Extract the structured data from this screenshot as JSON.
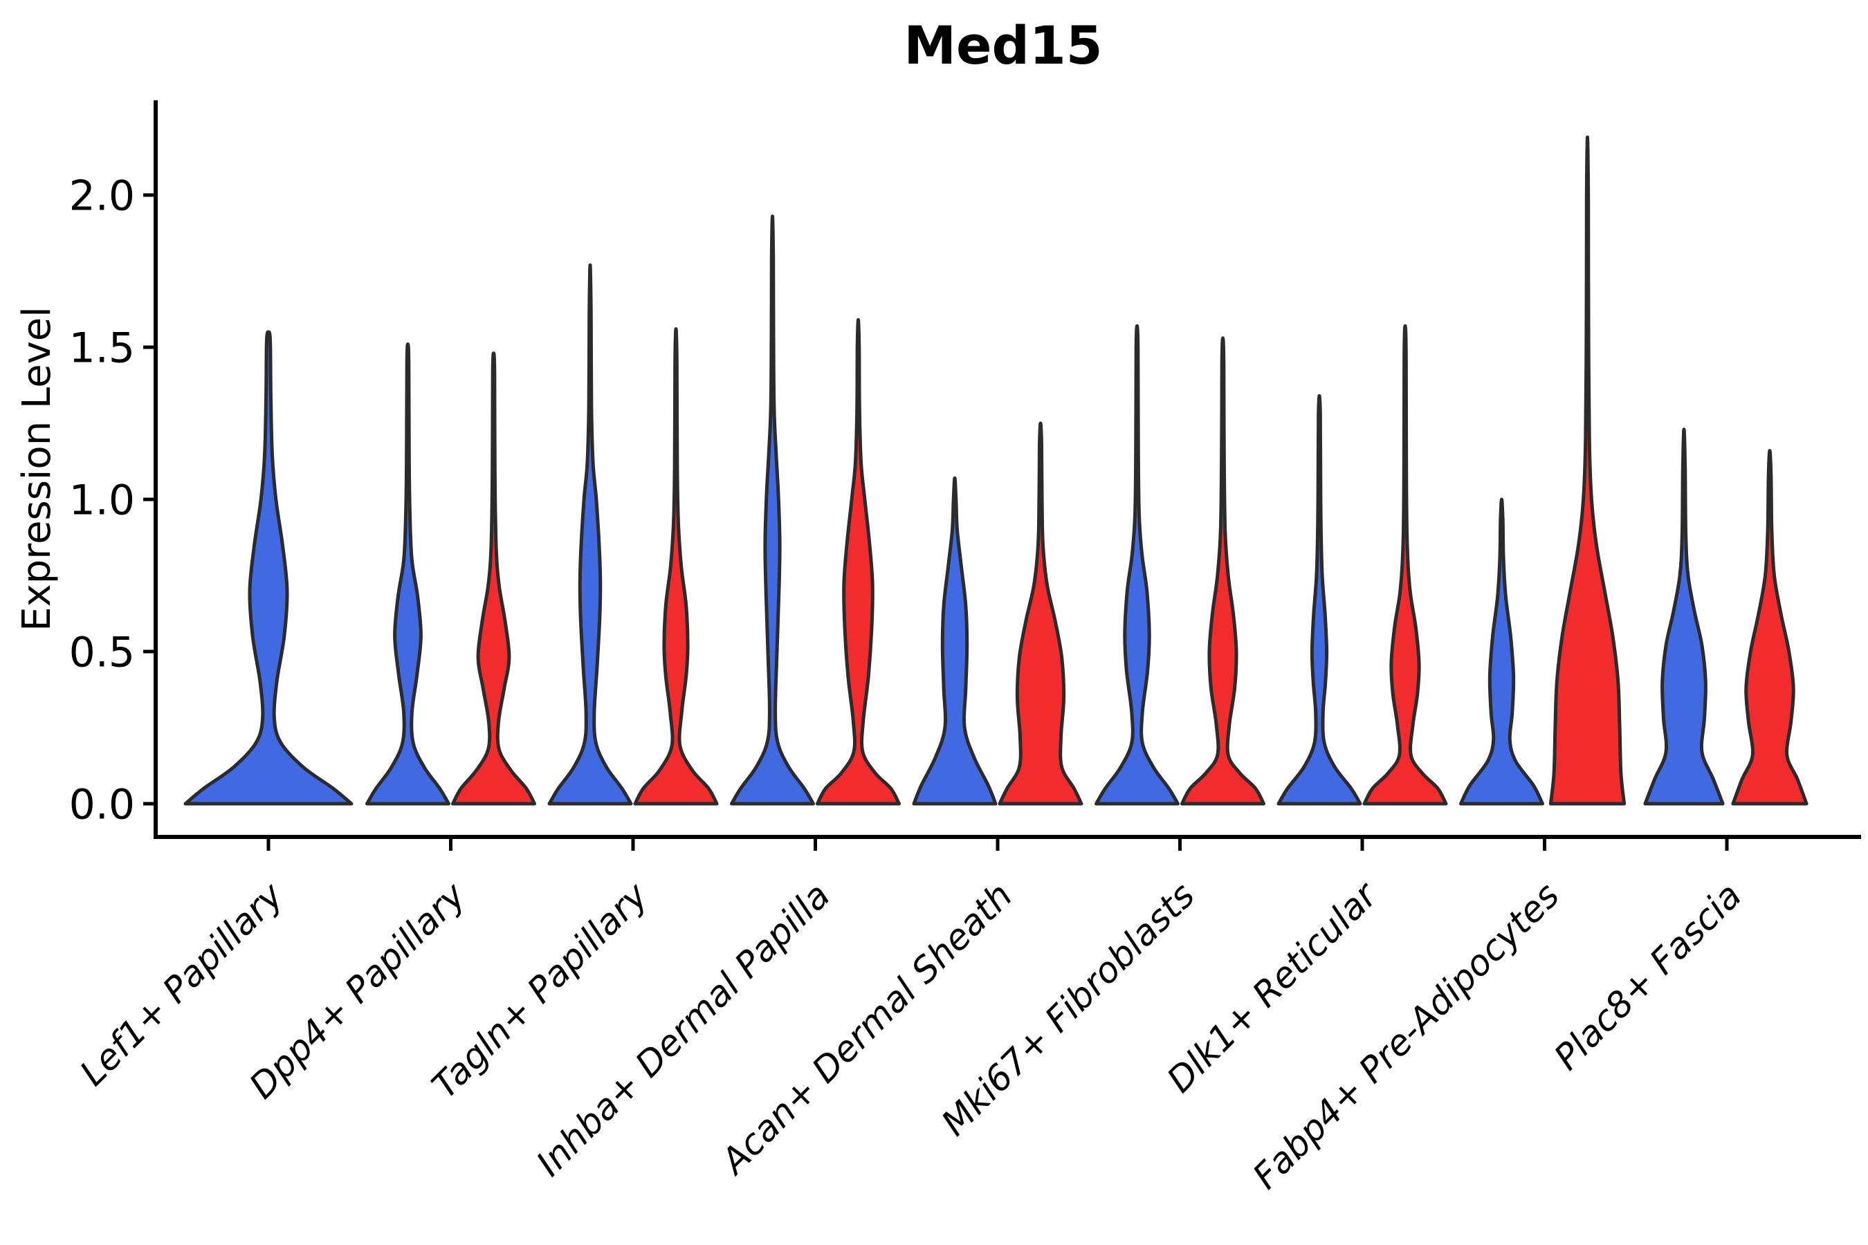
{
  "page": {
    "background": "#ffffff"
  },
  "chart_data": {
    "type": "violin",
    "title": "Med15",
    "ylabel": "Expression Level",
    "xlabel": "",
    "grid": false,
    "legend": null,
    "x_tick_rotation": 45,
    "ylim": [
      0,
      2.3
    ],
    "ytick_labels": [
      "0.0",
      "0.5",
      "1.0",
      "1.5",
      "2.0"
    ],
    "ytick_values": [
      0.0,
      0.5,
      1.0,
      1.5,
      2.0
    ],
    "colors": {
      "blue": "#4169E1",
      "red": "#F22C2C",
      "edge": "#2B2B2B",
      "axis": "#000000"
    },
    "categories": [
      "Lef1+ Papillary",
      "Dpp4+ Papillary",
      "Tagln+ Papillary",
      "Inhba+ Dermal Papilla",
      "Acan+ Dermal Sheath",
      "Mki67+ Fibroblasts",
      "Dlk1+ Reticular",
      "Fabp4+ Pre-Adipocytes",
      "Plac8+ Fascia"
    ],
    "groups": [
      {
        "category": "Lef1+ Papillary",
        "violins": [
          {
            "color": "blue",
            "peak": 1.55,
            "profile": [
              [
                0,
                1.0
              ],
              [
                0.05,
                0.78
              ],
              [
                0.12,
                0.42
              ],
              [
                0.2,
                0.15
              ],
              [
                0.28,
                0.07
              ],
              [
                0.4,
                0.1
              ],
              [
                0.55,
                0.19
              ],
              [
                0.7,
                0.225
              ],
              [
                0.85,
                0.17
              ],
              [
                1.0,
                0.09
              ],
              [
                1.15,
                0.045
              ],
              [
                1.35,
                0.028
              ],
              [
                1.52,
                0.022
              ],
              [
                1.55,
                0
              ]
            ]
          }
        ]
      },
      {
        "category": "Dpp4+ Papillary",
        "violins": [
          {
            "color": "blue",
            "peak": 1.51,
            "profile": [
              [
                0,
                1.0
              ],
              [
                0.05,
                0.78
              ],
              [
                0.12,
                0.4
              ],
              [
                0.2,
                0.13
              ],
              [
                0.3,
                0.1
              ],
              [
                0.42,
                0.22
              ],
              [
                0.55,
                0.32
              ],
              [
                0.68,
                0.24
              ],
              [
                0.8,
                0.1
              ],
              [
                0.95,
                0.05
              ],
              [
                1.15,
                0.03
              ],
              [
                1.45,
                0.022
              ],
              [
                1.51,
                0
              ]
            ]
          },
          {
            "color": "red",
            "peak": 1.48,
            "profile": [
              [
                0,
                1.0
              ],
              [
                0.05,
                0.8
              ],
              [
                0.11,
                0.42
              ],
              [
                0.18,
                0.13
              ],
              [
                0.27,
                0.12
              ],
              [
                0.38,
                0.26
              ],
              [
                0.48,
                0.38
              ],
              [
                0.6,
                0.28
              ],
              [
                0.72,
                0.13
              ],
              [
                0.85,
                0.06
              ],
              [
                1.1,
                0.03
              ],
              [
                1.42,
                0.022
              ],
              [
                1.48,
                0
              ]
            ]
          }
        ]
      },
      {
        "category": "Tagln+ Papillary",
        "violins": [
          {
            "color": "blue",
            "peak": 1.77,
            "profile": [
              [
                0,
                1.0
              ],
              [
                0.05,
                0.78
              ],
              [
                0.12,
                0.4
              ],
              [
                0.2,
                0.14
              ],
              [
                0.3,
                0.1
              ],
              [
                0.45,
                0.17
              ],
              [
                0.6,
                0.23
              ],
              [
                0.72,
                0.25
              ],
              [
                0.85,
                0.22
              ],
              [
                1.0,
                0.15
              ],
              [
                1.12,
                0.07
              ],
              [
                1.3,
                0.032
              ],
              [
                1.6,
                0.022
              ],
              [
                1.77,
                0
              ]
            ]
          },
          {
            "color": "red",
            "peak": 1.56,
            "profile": [
              [
                0,
                1.0
              ],
              [
                0.05,
                0.8
              ],
              [
                0.11,
                0.4
              ],
              [
                0.19,
                0.1
              ],
              [
                0.3,
                0.14
              ],
              [
                0.42,
                0.25
              ],
              [
                0.52,
                0.29
              ],
              [
                0.65,
                0.25
              ],
              [
                0.78,
                0.13
              ],
              [
                0.92,
                0.06
              ],
              [
                1.1,
                0.032
              ],
              [
                1.45,
                0.022
              ],
              [
                1.56,
                0
              ]
            ]
          }
        ]
      },
      {
        "category": "Inhba+ Dermal Papilla",
        "violins": [
          {
            "color": "blue",
            "peak": 1.93,
            "profile": [
              [
                0,
                1.0
              ],
              [
                0.05,
                0.78
              ],
              [
                0.12,
                0.4
              ],
              [
                0.2,
                0.13
              ],
              [
                0.3,
                0.07
              ],
              [
                0.5,
                0.11
              ],
              [
                0.7,
                0.16
              ],
              [
                0.85,
                0.18
              ],
              [
                1.0,
                0.15
              ],
              [
                1.15,
                0.09
              ],
              [
                1.3,
                0.04
              ],
              [
                1.55,
                0.025
              ],
              [
                1.8,
                0.02
              ],
              [
                1.93,
                0
              ]
            ]
          },
          {
            "color": "red",
            "peak": 1.59,
            "profile": [
              [
                0,
                1.0
              ],
              [
                0.05,
                0.8
              ],
              [
                0.1,
                0.42
              ],
              [
                0.17,
                0.11
              ],
              [
                0.27,
                0.12
              ],
              [
                0.42,
                0.25
              ],
              [
                0.58,
                0.33
              ],
              [
                0.72,
                0.35
              ],
              [
                0.85,
                0.28
              ],
              [
                1.0,
                0.16
              ],
              [
                1.12,
                0.07
              ],
              [
                1.3,
                0.03
              ],
              [
                1.5,
                0.022
              ],
              [
                1.59,
                0
              ]
            ]
          }
        ]
      },
      {
        "category": "Acan+ Dermal Sheath",
        "violins": [
          {
            "color": "blue",
            "peak": 1.07,
            "profile": [
              [
                0,
                1.0
              ],
              [
                0.06,
                0.82
              ],
              [
                0.15,
                0.48
              ],
              [
                0.25,
                0.24
              ],
              [
                0.38,
                0.27
              ],
              [
                0.52,
                0.3
              ],
              [
                0.65,
                0.27
              ],
              [
                0.78,
                0.16
              ],
              [
                0.9,
                0.06
              ],
              [
                1.0,
                0.03
              ],
              [
                1.07,
                0
              ]
            ]
          },
          {
            "color": "red",
            "peak": 1.25,
            "profile": [
              [
                0,
                1.0
              ],
              [
                0.05,
                0.82
              ],
              [
                0.12,
                0.52
              ],
              [
                0.22,
                0.5
              ],
              [
                0.35,
                0.57
              ],
              [
                0.48,
                0.52
              ],
              [
                0.6,
                0.36
              ],
              [
                0.72,
                0.16
              ],
              [
                0.85,
                0.06
              ],
              [
                1.0,
                0.035
              ],
              [
                1.18,
                0.025
              ],
              [
                1.25,
                0
              ]
            ]
          }
        ]
      },
      {
        "category": "Mki67+ Fibroblasts",
        "violins": [
          {
            "color": "blue",
            "peak": 1.57,
            "profile": [
              [
                0,
                1.0
              ],
              [
                0.05,
                0.78
              ],
              [
                0.12,
                0.4
              ],
              [
                0.2,
                0.13
              ],
              [
                0.3,
                0.13
              ],
              [
                0.44,
                0.26
              ],
              [
                0.56,
                0.3
              ],
              [
                0.7,
                0.24
              ],
              [
                0.82,
                0.12
              ],
              [
                0.95,
                0.05
              ],
              [
                1.2,
                0.028
              ],
              [
                1.5,
                0.022
              ],
              [
                1.57,
                0
              ]
            ]
          },
          {
            "color": "red",
            "peak": 1.53,
            "profile": [
              [
                0,
                1.0
              ],
              [
                0.05,
                0.8
              ],
              [
                0.1,
                0.42
              ],
              [
                0.16,
                0.13
              ],
              [
                0.26,
                0.16
              ],
              [
                0.38,
                0.29
              ],
              [
                0.5,
                0.33
              ],
              [
                0.62,
                0.26
              ],
              [
                0.75,
                0.13
              ],
              [
                0.9,
                0.055
              ],
              [
                1.15,
                0.03
              ],
              [
                1.45,
                0.022
              ],
              [
                1.53,
                0
              ]
            ]
          }
        ]
      },
      {
        "category": "Dlk1+ Reticular",
        "violins": [
          {
            "color": "blue",
            "peak": 1.34,
            "profile": [
              [
                0,
                1.0
              ],
              [
                0.05,
                0.78
              ],
              [
                0.12,
                0.38
              ],
              [
                0.2,
                0.12
              ],
              [
                0.3,
                0.09
              ],
              [
                0.4,
                0.15
              ],
              [
                0.5,
                0.18
              ],
              [
                0.62,
                0.14
              ],
              [
                0.75,
                0.07
              ],
              [
                0.9,
                0.04
              ],
              [
                1.1,
                0.028
              ],
              [
                1.28,
                0.022
              ],
              [
                1.34,
                0
              ]
            ]
          },
          {
            "color": "red",
            "peak": 1.57,
            "profile": [
              [
                0,
                1.0
              ],
              [
                0.05,
                0.8
              ],
              [
                0.1,
                0.42
              ],
              [
                0.16,
                0.14
              ],
              [
                0.26,
                0.19
              ],
              [
                0.36,
                0.3
              ],
              [
                0.46,
                0.34
              ],
              [
                0.58,
                0.26
              ],
              [
                0.7,
                0.12
              ],
              [
                0.85,
                0.05
              ],
              [
                1.1,
                0.028
              ],
              [
                1.48,
                0.022
              ],
              [
                1.57,
                0
              ]
            ]
          }
        ]
      },
      {
        "category": "Fabp4+ Pre-Adipocytes",
        "violins": [
          {
            "color": "blue",
            "peak": 1.0,
            "profile": [
              [
                0,
                1.0
              ],
              [
                0.06,
                0.78
              ],
              [
                0.14,
                0.34
              ],
              [
                0.21,
                0.2
              ],
              [
                0.3,
                0.26
              ],
              [
                0.42,
                0.29
              ],
              [
                0.55,
                0.22
              ],
              [
                0.68,
                0.1
              ],
              [
                0.8,
                0.045
              ],
              [
                0.93,
                0.028
              ],
              [
                1.0,
                0
              ]
            ]
          },
          {
            "color": "red",
            "peak": 2.19,
            "profile": [
              [
                0,
                0.9
              ],
              [
                0.1,
                0.82
              ],
              [
                0.25,
                0.79
              ],
              [
                0.4,
                0.75
              ],
              [
                0.55,
                0.62
              ],
              [
                0.7,
                0.42
              ],
              [
                0.85,
                0.22
              ],
              [
                1.0,
                0.1
              ],
              [
                1.2,
                0.045
              ],
              [
                1.6,
                0.025
              ],
              [
                2.0,
                0.02
              ],
              [
                2.19,
                0
              ]
            ]
          }
        ]
      },
      {
        "category": "Plac8+ Fascia",
        "violins": [
          {
            "color": "blue",
            "peak": 1.23,
            "profile": [
              [
                0,
                0.95
              ],
              [
                0.08,
                0.72
              ],
              [
                0.17,
                0.44
              ],
              [
                0.28,
                0.5
              ],
              [
                0.4,
                0.53
              ],
              [
                0.52,
                0.44
              ],
              [
                0.63,
                0.26
              ],
              [
                0.75,
                0.1
              ],
              [
                0.88,
                0.045
              ],
              [
                1.1,
                0.028
              ],
              [
                1.23,
                0
              ]
            ]
          },
          {
            "color": "red",
            "peak": 1.16,
            "profile": [
              [
                0,
                0.9
              ],
              [
                0.08,
                0.68
              ],
              [
                0.16,
                0.42
              ],
              [
                0.27,
                0.52
              ],
              [
                0.38,
                0.58
              ],
              [
                0.5,
                0.47
              ],
              [
                0.62,
                0.28
              ],
              [
                0.75,
                0.11
              ],
              [
                0.9,
                0.05
              ],
              [
                1.08,
                0.03
              ],
              [
                1.16,
                0
              ]
            ]
          }
        ]
      }
    ]
  }
}
